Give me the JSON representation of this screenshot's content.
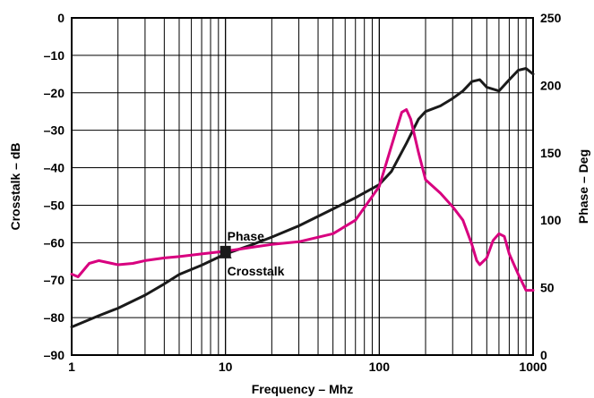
{
  "chart_data": {
    "type": "line",
    "x_scale": "log",
    "xlim": [
      1,
      1000
    ],
    "ylim_left": [
      -90,
      0
    ],
    "ylim_right": [
      0,
      250
    ],
    "grid": true,
    "xlabel": "Frequency – Mhz",
    "ylabel_left": "Crosstalk – dB",
    "ylabel_right": "Phase – Deg",
    "x_ticks": [
      "1",
      "10",
      "100",
      "1000"
    ],
    "y_ticks_left": [
      "0",
      "–10",
      "–20",
      "–30",
      "–40",
      "–50",
      "–60",
      "–70",
      "–80",
      "–90"
    ],
    "y_ticks_right": [
      "250",
      "200",
      "150",
      "100",
      "50",
      "0"
    ],
    "series": [
      {
        "name": "Crosstalk",
        "axis": "left",
        "color": "#1a1a1a",
        "x": [
          1,
          1.5,
          2,
          3,
          4,
          5,
          7,
          10,
          15,
          20,
          30,
          50,
          70,
          100,
          120,
          150,
          180,
          200,
          250,
          300,
          350,
          400,
          450,
          500,
          600,
          700,
          800,
          900,
          1000
        ],
        "y": [
          -82.5,
          -79.5,
          -77.5,
          -74,
          -71,
          -68.5,
          -66,
          -63,
          -60.5,
          -58.5,
          -55.5,
          -51,
          -48,
          -44.5,
          -41,
          -33.5,
          -27,
          -25,
          -23.5,
          -21.5,
          -19.5,
          -17,
          -16.5,
          -18.5,
          -19.5,
          -16.5,
          -14,
          -13.5,
          -15
        ]
      },
      {
        "name": "Phase",
        "axis": "right",
        "color": "#d8007f",
        "x": [
          1,
          1.1,
          1.3,
          1.5,
          2,
          2.5,
          3,
          4,
          5,
          7,
          10,
          15,
          20,
          30,
          50,
          70,
          100,
          120,
          140,
          150,
          160,
          180,
          200,
          250,
          300,
          350,
          400,
          430,
          450,
          500,
          550,
          600,
          650,
          700,
          800,
          900,
          1000
        ],
        "y": [
          60,
          58,
          68,
          70,
          67,
          68,
          70,
          72,
          73,
          75,
          77,
          80,
          82,
          84,
          90,
          100,
          125,
          155,
          180,
          182,
          175,
          150,
          130,
          120,
          110,
          100,
          82,
          70,
          67,
          72,
          85,
          90,
          88,
          75,
          60,
          48,
          48
        ]
      }
    ],
    "annotations": [
      {
        "text": "Phase",
        "marker": "square",
        "x": 10,
        "series": "Phase"
      },
      {
        "text": "Crosstalk",
        "marker": "triangle",
        "x": 10,
        "series": "Crosstalk"
      }
    ]
  }
}
